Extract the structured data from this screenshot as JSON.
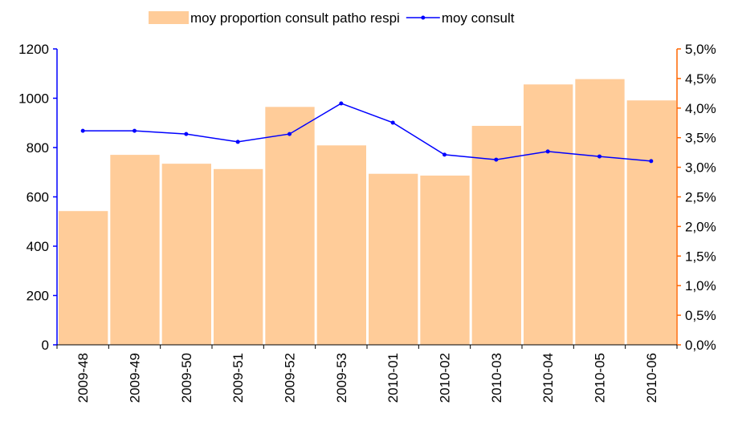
{
  "chart_data": {
    "type": "bar",
    "categories": [
      "2009-48",
      "2009-49",
      "2009-50",
      "2009-51",
      "2009-52",
      "2009-53",
      "2010-01",
      "2010-02",
      "2010-03",
      "2010-04",
      "2010-05",
      "2010-06"
    ],
    "series": [
      {
        "name": "moy proportion consult patho respi",
        "type": "bar",
        "axis": "y2",
        "color": "#ffcc99",
        "values": [
          2.26,
          3.21,
          3.06,
          2.97,
          4.02,
          3.37,
          2.89,
          2.86,
          3.7,
          4.4,
          4.49,
          4.13
        ]
      },
      {
        "name": "moy consult",
        "type": "line",
        "axis": "y",
        "color": "#0000ff",
        "values": [
          868,
          868,
          855,
          823,
          855,
          979,
          901,
          771,
          751,
          784,
          764,
          745
        ]
      }
    ],
    "ylim": [
      0,
      1200
    ],
    "yticks": [
      0,
      200,
      400,
      600,
      800,
      1000,
      1200
    ],
    "y_axis_color": "#0000ff",
    "y2lim": [
      0,
      5
    ],
    "y2_axis_color": "#ff6600",
    "y2ticks": [
      {
        "value": 0,
        "label": "0,0%"
      },
      {
        "value": 0.5,
        "label": "0,5%"
      },
      {
        "value": 1,
        "label": "1,0%"
      },
      {
        "value": 1.5,
        "label": "1,5%"
      },
      {
        "value": 2,
        "label": "2,0%"
      },
      {
        "value": 2.5,
        "label": "2,5%"
      },
      {
        "value": 3,
        "label": "3,0%"
      },
      {
        "value": 3.5,
        "label": "3,5%"
      },
      {
        "value": 4,
        "label": "4,0%"
      },
      {
        "value": 4.5,
        "label": "4,5%"
      },
      {
        "value": 5,
        "label": "5,0%"
      }
    ],
    "legend": "top"
  }
}
